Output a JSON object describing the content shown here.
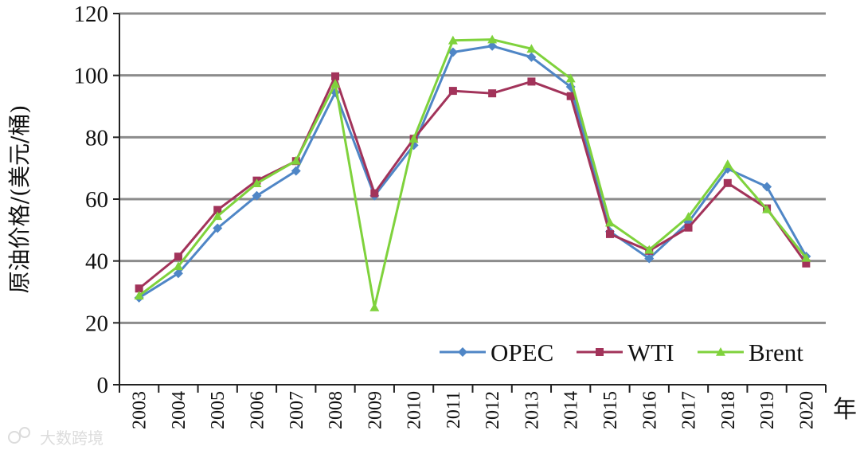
{
  "chart_data": {
    "type": "line",
    "title": "",
    "xlabel": "年",
    "ylabel": "原油价格/(美元/桶)",
    "ylim": [
      0,
      120
    ],
    "yticks": [
      "0",
      "20",
      "40",
      "60",
      "80",
      "100",
      "120"
    ],
    "categories": [
      "2003",
      "2004",
      "2005",
      "2006",
      "2007",
      "2008",
      "2009",
      "2010",
      "2011",
      "2012",
      "2013",
      "2014",
      "2015",
      "2016",
      "2017",
      "2018",
      "2019",
      "2020"
    ],
    "grid": true,
    "legend_position": "bottom-right",
    "series": [
      {
        "name": "OPEC",
        "color": "#4f86c6",
        "marker": "diamond",
        "values": [
          28.1,
          36.0,
          50.6,
          61.1,
          69.1,
          94.5,
          61.1,
          77.4,
          107.5,
          109.5,
          105.9,
          96.3,
          49.5,
          40.8,
          52.5,
          69.8,
          64.0,
          41.5
        ]
      },
      {
        "name": "WTI",
        "color": "#a2335a",
        "marker": "square",
        "values": [
          31.1,
          41.4,
          56.5,
          66.0,
          72.3,
          99.7,
          61.9,
          79.5,
          95.0,
          94.2,
          98.0,
          93.3,
          48.7,
          43.3,
          50.8,
          65.2,
          57.0,
          39.2
        ]
      },
      {
        "name": "Brent",
        "color": "#7fd23c",
        "marker": "triangle",
        "values": [
          28.8,
          38.3,
          54.5,
          65.1,
          72.4,
          97.3,
          25.0,
          79.5,
          111.3,
          111.6,
          108.6,
          99.0,
          52.4,
          43.6,
          54.3,
          71.3,
          56.7,
          41.0
        ]
      }
    ]
  },
  "watermark": {
    "text": "大数跨境"
  }
}
